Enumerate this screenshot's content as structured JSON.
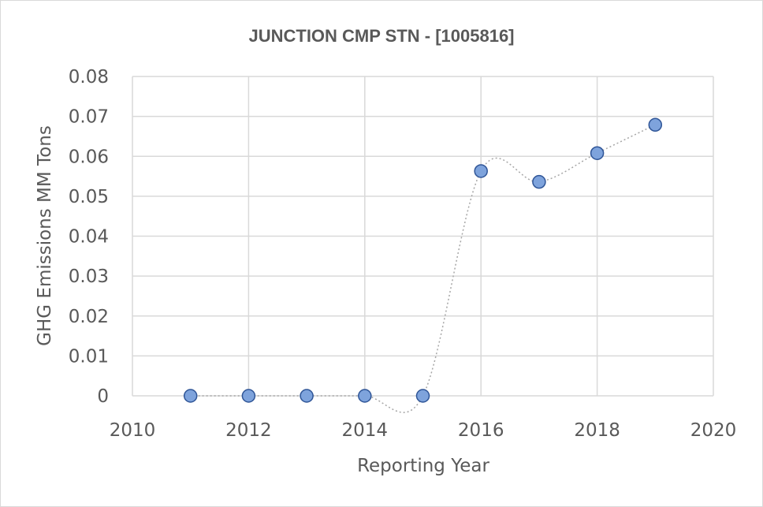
{
  "chart_data": {
    "type": "scatter",
    "title": "JUNCTION CMP STN - [1005816]",
    "xlabel": "Reporting Year",
    "ylabel": "GHG Emissions MM Tons",
    "xlim": [
      2010,
      2020
    ],
    "ylim": [
      0,
      0.08
    ],
    "x_ticks": [
      "2010",
      "2012",
      "2014",
      "2016",
      "2018",
      "2020"
    ],
    "y_ticks": [
      "0",
      "0.01",
      "0.02",
      "0.03",
      "0.04",
      "0.05",
      "0.06",
      "0.07",
      "0.08"
    ],
    "grid": true,
    "smoothed_dotted_line": true,
    "marker_color": "#7ea3dc",
    "marker_edge_color": "#2f5597",
    "line_color": "#a6a6a6",
    "series": [
      {
        "x": [
          2011,
          2012,
          2013,
          2014,
          2015,
          2016,
          2017,
          2018,
          2019
        ],
        "y": [
          0,
          0,
          0,
          0,
          0,
          0.0563,
          0.0536,
          0.0608,
          0.0679
        ]
      }
    ]
  }
}
